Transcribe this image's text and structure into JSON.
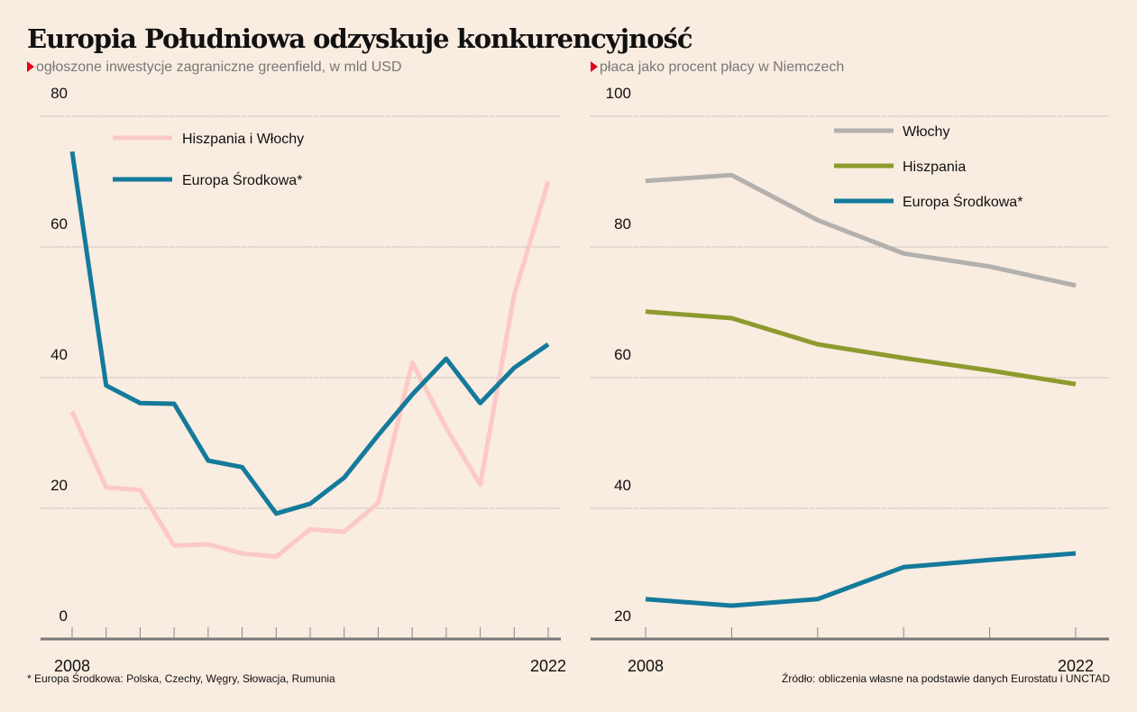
{
  "title": "Europia Południowa odzyskuje konkurencyjność",
  "footnote": "* Europa Środkowa: Polska, Czechy, Węgry, Słowacja, Rumunia",
  "source": "Źródło: obliczenia własne na podstawie danych Eurostatu i UNCTAD",
  "colors": {
    "background": "#f9ece0",
    "pink": "#fcc9c6",
    "blue": "#147a9b",
    "gray": "#b3b1ad",
    "olive": "#8e9a2f",
    "accent": "#e3001b"
  },
  "chart_data": [
    {
      "type": "line",
      "subtitle": "ogłoszone inwestycje zagraniczne greenfield, w mld USD",
      "ylim": [
        0,
        80
      ],
      "yticks": [
        "0",
        "20",
        "40",
        "60",
        "80"
      ],
      "xtick_labels": [
        "2008",
        "2022"
      ],
      "grid": true,
      "legend": "top-left",
      "x": [
        2008,
        2009,
        2010,
        2011,
        2012,
        2013,
        2014,
        2015,
        2016,
        2017,
        2018,
        2019,
        2020,
        2021,
        2022
      ],
      "series": [
        {
          "name": "Hiszpania i Włochy",
          "color": "#fcc9c6",
          "values": [
            34.8,
            23.2,
            22.8,
            14.3,
            14.5,
            13.1,
            12.6,
            16.8,
            16.4,
            20.8,
            42.3,
            32.3,
            23.6,
            52.7,
            70.0
          ]
        },
        {
          "name": "Europa Środkowa*",
          "color": "#147a9b",
          "values": [
            74.6,
            38.8,
            36.1,
            36.0,
            27.3,
            26.3,
            19.2,
            20.7,
            24.7,
            31.2,
            37.4,
            42.9,
            36.1,
            41.5,
            45.1
          ]
        }
      ]
    },
    {
      "type": "line",
      "subtitle": "płaca jako procent płacy w Niemczech",
      "ylim": [
        20,
        100
      ],
      "yticks": [
        "20",
        "40",
        "60",
        "80",
        "100"
      ],
      "xtick_labels": [
        "2008",
        "2022"
      ],
      "grid": true,
      "legend": "top-center",
      "series": [
        {
          "name": "Włochy",
          "color": "#b3b1ad",
          "values": [
            90.1,
            91.0,
            84.1,
            79.0,
            77.0,
            74.1
          ]
        },
        {
          "name": "Hiszpania",
          "color": "#8e9a2f",
          "values": [
            70.1,
            69.1,
            65.1,
            63.0,
            61.1,
            59.0
          ]
        },
        {
          "name": "Europa Środkowa*",
          "color": "#147a9b",
          "values": [
            26.1,
            25.1,
            26.1,
            31.0,
            32.1,
            33.1
          ]
        }
      ]
    }
  ]
}
